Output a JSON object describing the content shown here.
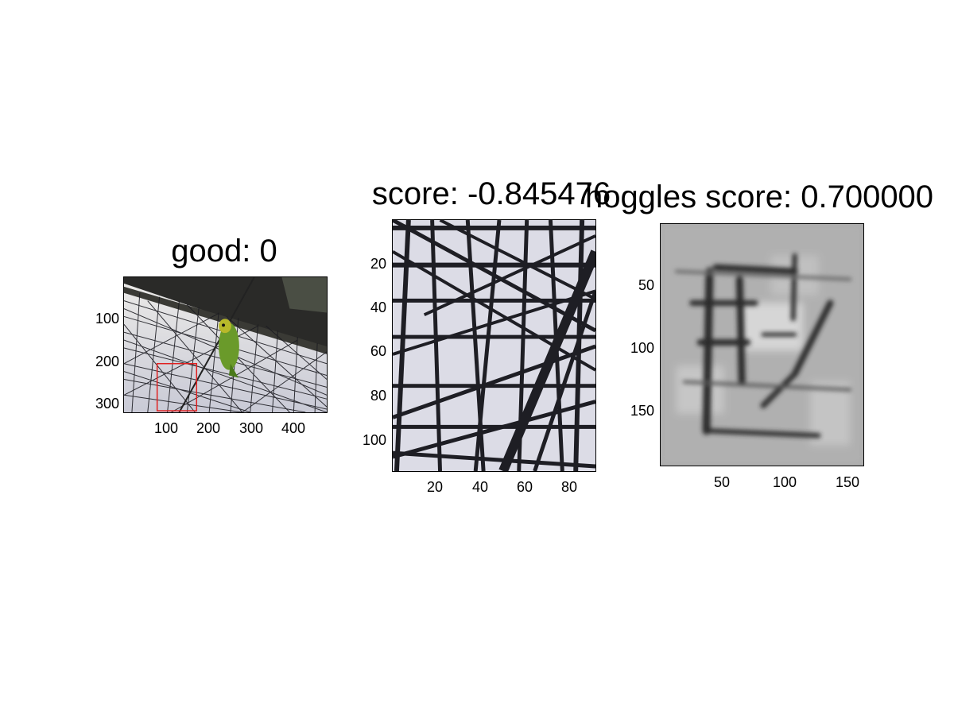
{
  "panels": [
    {
      "id": "original",
      "title": "good: 0",
      "x_ticks": [
        "100",
        "200",
        "300",
        "400"
      ],
      "y_ticks": [
        "100",
        "200",
        "300"
      ],
      "image_desc": "photo-parrot-on-net",
      "highlight_color": "#e02020"
    },
    {
      "id": "crop",
      "title": "score: -0.845476",
      "x_ticks": [
        "20",
        "40",
        "60",
        "80"
      ],
      "y_ticks": [
        "20",
        "40",
        "60",
        "80",
        "100"
      ],
      "image_desc": "crop-net-closeup"
    },
    {
      "id": "hoggles",
      "title": "hoggles score: 0.700000",
      "x_ticks": [
        "50",
        "100",
        "150"
      ],
      "y_ticks": [
        "50",
        "100",
        "150"
      ],
      "image_desc": "hoggles-grayscale-reconstruction"
    }
  ],
  "colors": {
    "sky": "#e4e4ec",
    "net": "#1e1e24",
    "parrot": "#6a9a2a",
    "gray_bg": "#a8a8a8"
  }
}
